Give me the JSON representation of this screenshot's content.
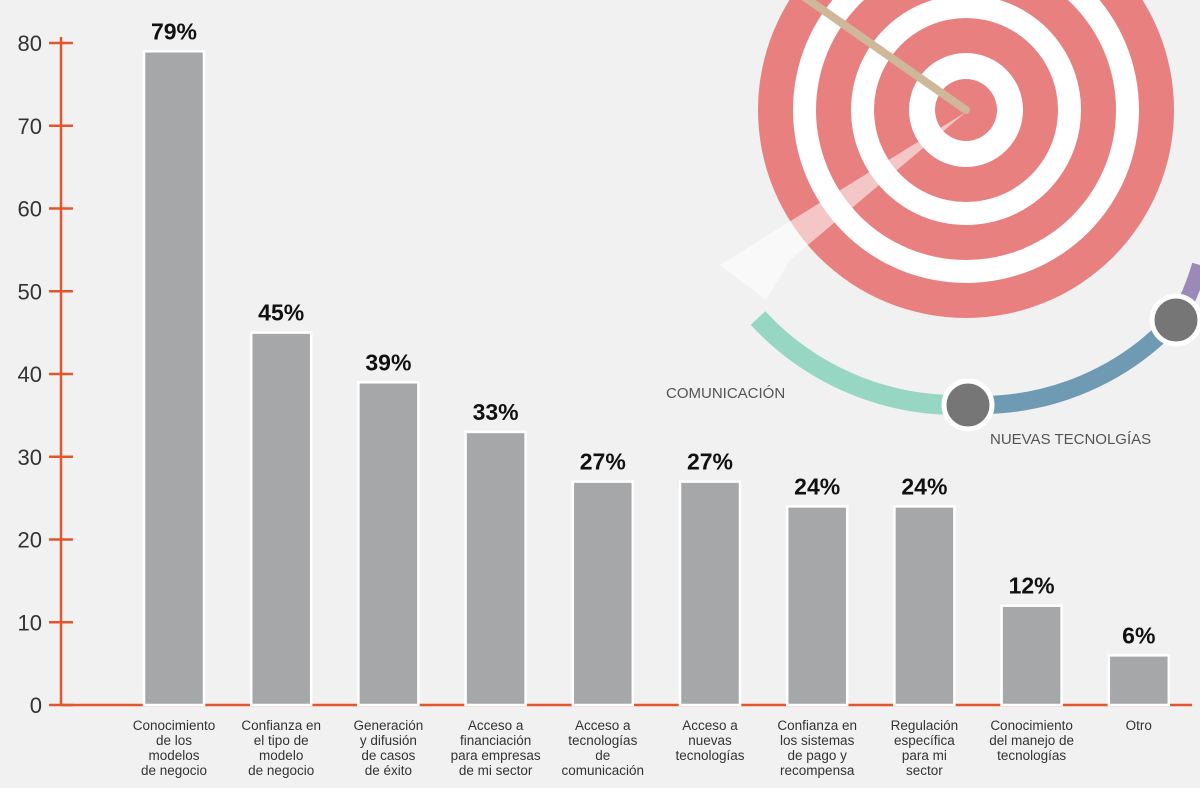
{
  "chart_data": {
    "type": "bar",
    "categories": [
      "Conocimiento de los modelos de negocio",
      "Confianza en el tipo de modelo de negocio",
      "Generación y difusión de casos de éxito",
      "Acceso a financiación para empresas de mi sector",
      "Acceso a tecnologías de comunicación",
      "Acceso a nuevas tecnologías",
      "Confianza en los sistemas de pago y recompensa",
      "Regulación específica para mi sector",
      "Conocimiento del manejo de tecnologías",
      "Otro"
    ],
    "category_lines": [
      [
        "Conocimiento",
        "de los",
        "modelos",
        "de negocio"
      ],
      [
        "Confianza en",
        "el tipo de",
        "modelo",
        "de negocio"
      ],
      [
        "Generación",
        "y difusión",
        "de casos",
        "de éxito"
      ],
      [
        "Acceso a",
        "financiación",
        "para empresas",
        "de mi sector"
      ],
      [
        "Acceso a",
        "tecnologías",
        "de",
        "comunicación"
      ],
      [
        "Acceso a",
        "nuevas",
        "tecnologías"
      ],
      [
        "Confianza en",
        "los sistemas",
        "de pago y",
        "recompensa"
      ],
      [
        "Regulación",
        "específica",
        "para mi",
        "sector"
      ],
      [
        "Conocimiento",
        "del manejo de",
        "tecnologías"
      ],
      [
        "Otro"
      ]
    ],
    "values": [
      79,
      45,
      39,
      33,
      27,
      27,
      24,
      24,
      12,
      6
    ],
    "value_labels": [
      "79%",
      "45%",
      "39%",
      "33%",
      "27%",
      "27%",
      "24%",
      "24%",
      "12%",
      "6%"
    ],
    "yticks": [
      0,
      10,
      20,
      30,
      40,
      50,
      60,
      70,
      80
    ],
    "ylim": [
      0,
      80
    ],
    "grid": false,
    "colors": {
      "bar": "#a6a7a9",
      "bar_outline": "#ffffff",
      "axis": "#e2552d"
    }
  },
  "decoration": {
    "labels": [
      "COMUNICACIÓN",
      "NUEVAS TECNOLGÍAS"
    ],
    "colors": {
      "target": "#e98080",
      "ring_teal": "#97d6c2",
      "ring_blue": "#6f9ab3",
      "dot": "#767676"
    }
  }
}
